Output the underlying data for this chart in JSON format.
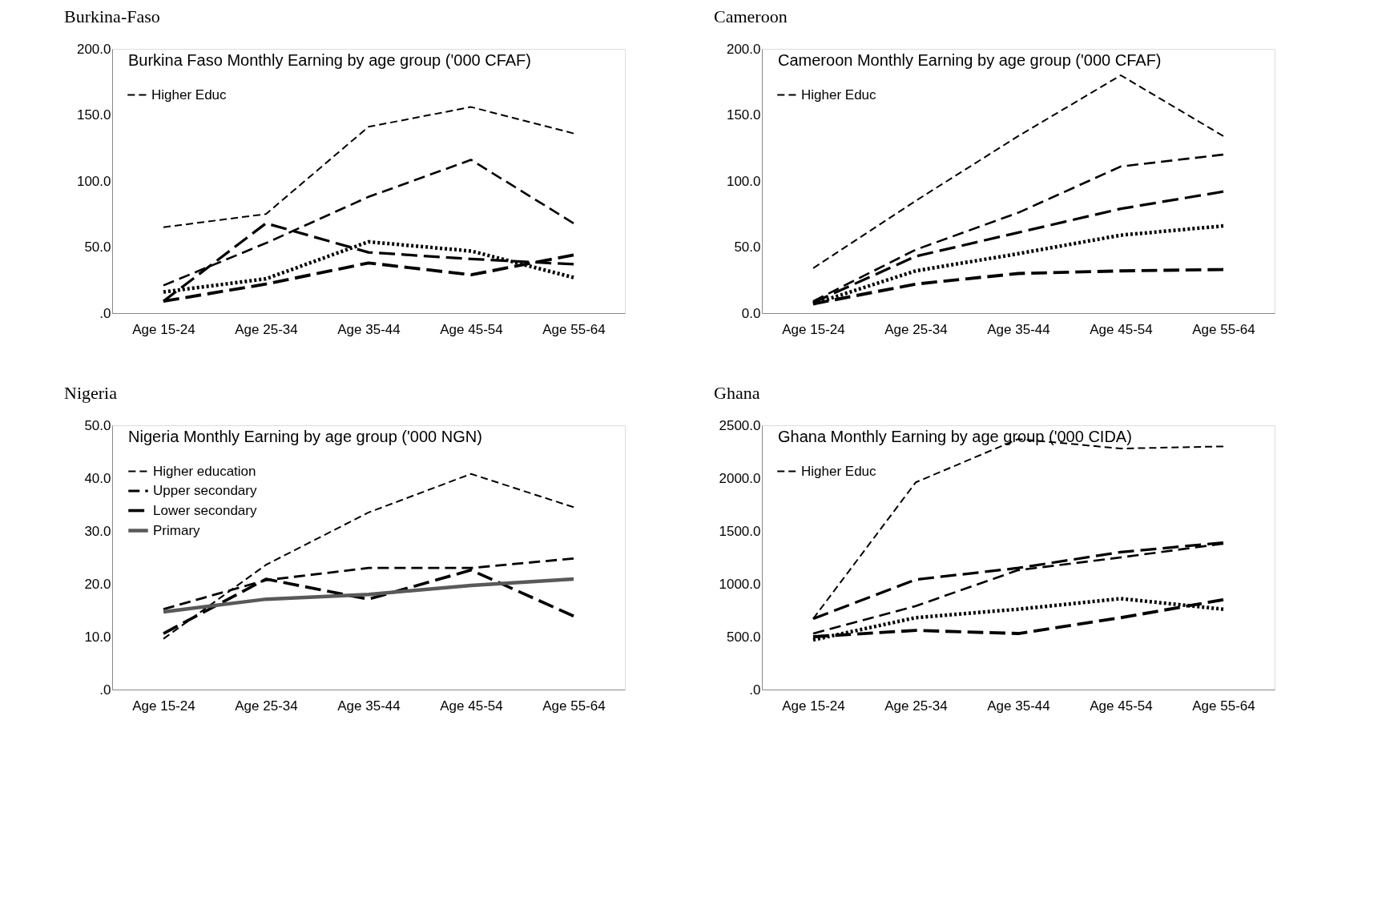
{
  "chart_data": [
    {
      "type": "line",
      "title": "Burkina Faso Monthly Earning by age group  ('000 CFAF)",
      "annotations": [
        "Burkina-Faso"
      ],
      "categories": [
        "Age 15-24",
        "Age 25-34",
        "Age 35-44",
        "Age 45-54",
        "Age 55-64"
      ],
      "ylim": [
        0,
        200
      ],
      "yticks": [
        {
          "value": 0,
          "label": ".0"
        },
        {
          "value": 50,
          "label": "50.0"
        },
        {
          "value": 100,
          "label": "100.0"
        },
        {
          "value": 150,
          "label": "150.0"
        },
        {
          "value": 200,
          "label": "200.0"
        }
      ],
      "grid": false,
      "legend": "top left",
      "marker": "none",
      "series": [
        {
          "name": "Higher Educ",
          "color": "#000000",
          "line_style": "dashed",
          "values": [
            65,
            75,
            141,
            156,
            136
          ]
        },
        {
          "color": "#000000",
          "line_style": "dashed",
          "values": [
            21,
            53,
            88,
            116,
            68
          ]
        },
        {
          "color": "#000000",
          "line_style": "dashed",
          "values": [
            9,
            68,
            46,
            41,
            37
          ]
        },
        {
          "color": "#000000",
          "line_style": "dashed",
          "values": [
            9,
            22,
            38,
            29,
            44
          ]
        },
        {
          "color": "#000000",
          "line_style": "dotted",
          "values": [
            16,
            26,
            54,
            47,
            27
          ]
        }
      ]
    },
    {
      "type": "line",
      "title": "Cameroon Monthly Earning by age group ('000 CFAF)",
      "annotations": [
        "Cameroon"
      ],
      "categories": [
        "Age 15-24",
        "Age 25-34",
        "Age 35-44",
        "Age 45-54",
        "Age 55-64"
      ],
      "ylim": [
        0,
        200
      ],
      "yticks": [
        {
          "value": 0,
          "label": "0.0"
        },
        {
          "value": 50,
          "label": "50.0"
        },
        {
          "value": 100,
          "label": "100.0"
        },
        {
          "value": 150,
          "label": "150.0"
        },
        {
          "value": 200,
          "label": "200.0"
        }
      ],
      "grid": false,
      "legend": "top left",
      "marker": "none",
      "series": [
        {
          "name": "Higher Educ",
          "color": "#000000",
          "line_style": "dashed",
          "values": [
            34,
            85,
            134,
            180,
            134
          ]
        },
        {
          "color": "#000000",
          "line_style": "dashed",
          "values": [
            9,
            48,
            76,
            111,
            120
          ]
        },
        {
          "color": "#000000",
          "line_style": "dashed",
          "values": [
            8,
            43,
            61,
            79,
            92
          ]
        },
        {
          "color": "#000000",
          "line_style": "dashed",
          "values": [
            7,
            22,
            30,
            32,
            33
          ]
        },
        {
          "color": "#000000",
          "line_style": "dotted",
          "values": [
            7,
            32,
            45,
            59,
            66
          ]
        }
      ]
    },
    {
      "type": "line",
      "title": "Nigeria Monthly Earning by age group ('000 NGN)",
      "annotations": [
        "Nigeria"
      ],
      "categories": [
        "Age 15-24",
        "Age 25-34",
        "Age 35-44",
        "Age 45-54",
        "Age 55-64"
      ],
      "ylim": [
        0,
        50
      ],
      "yticks": [
        {
          "value": 0,
          "label": ".0"
        },
        {
          "value": 10,
          "label": "10.0"
        },
        {
          "value": 20,
          "label": "20.0"
        },
        {
          "value": 30,
          "label": "30.0"
        },
        {
          "value": 40,
          "label": "40.0"
        },
        {
          "value": 50,
          "label": "50.0"
        }
      ],
      "grid": false,
      "legend": "top left",
      "marker": "none",
      "series": [
        {
          "name": "Higher education",
          "color": "#000000",
          "line_style": "dashed",
          "values": [
            9.6,
            23.6,
            33.5,
            40.8,
            34.5
          ]
        },
        {
          "name": "Upper secondary",
          "color": "#000000",
          "line_style": "dashed",
          "values": [
            15.2,
            20.7,
            23.0,
            23.0,
            24.8
          ]
        },
        {
          "name": "Lower secondary",
          "color": "#000000",
          "line_style": "dashed",
          "values": [
            10.6,
            20.9,
            17.1,
            22.6,
            13.9
          ]
        },
        {
          "name": "Primary",
          "color": "#595959",
          "line_style": "solid",
          "values": [
            14.7,
            17.1,
            18.0,
            19.7,
            20.9
          ]
        }
      ]
    },
    {
      "type": "line",
      "title": "Ghana Monthly Earning by age group  ('000 CIDA)",
      "annotations": [
        "Ghana"
      ],
      "categories": [
        "Age 15-24",
        "Age 25-34",
        "Age 35-44",
        "Age 45-54",
        "Age 55-64"
      ],
      "ylim": [
        0,
        2500
      ],
      "yticks": [
        {
          "value": 0,
          "label": ".0"
        },
        {
          "value": 500,
          "label": "500.0"
        },
        {
          "value": 1000,
          "label": "1000.0"
        },
        {
          "value": 1500,
          "label": "1500.0"
        },
        {
          "value": 2000,
          "label": "2000.0"
        },
        {
          "value": 2500,
          "label": "2500.0"
        }
      ],
      "grid": false,
      "legend": "top left",
      "marker": "none",
      "series": [
        {
          "name": "Higher Educ",
          "color": "#000000",
          "line_style": "dashed",
          "values": [
            670,
            1960,
            2370,
            2280,
            2300
          ]
        },
        {
          "color": "#000000",
          "line_style": "dashed",
          "values": [
            530,
            790,
            1130,
            1250,
            1380
          ]
        },
        {
          "color": "#000000",
          "line_style": "dashed",
          "values": [
            670,
            1040,
            1150,
            1300,
            1390
          ]
        },
        {
          "color": "#000000",
          "line_style": "dashed",
          "values": [
            500,
            560,
            530,
            680,
            850
          ]
        },
        {
          "color": "#000000",
          "line_style": "dotted",
          "values": [
            470,
            680,
            760,
            860,
            760
          ]
        }
      ]
    }
  ]
}
